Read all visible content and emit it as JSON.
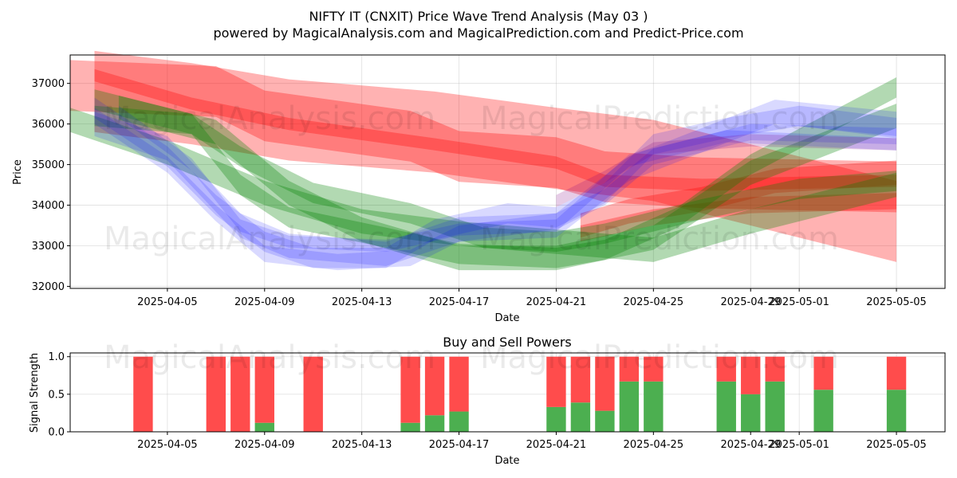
{
  "title": "NIFTY IT (CNXIT) Price Wave Trend Analysis (May 03 )",
  "subtitle": "powered by MagicalAnalysis.com and MagicalPrediction.com and Predict-Price.com",
  "watermarks": [
    "MagicalAnalysis.com",
    "MagicalPrediction.com"
  ],
  "colors": {
    "red": "#ff0000",
    "green": "#008000",
    "blue": "#0000ff",
    "bar_buy": "#4caf50",
    "bar_sell": "#ff4c4c"
  },
  "chart_data": [
    {
      "type": "area",
      "title": "",
      "xlabel": "Date",
      "ylabel": "Price",
      "ylim": [
        31950,
        37700
      ],
      "xlim": [
        "2025-04-01",
        "2025-05-07"
      ],
      "x_ticks": [
        "2025-04-05",
        "2025-04-09",
        "2025-04-13",
        "2025-04-17",
        "2025-04-21",
        "2025-04-25",
        "2025-04-29",
        "2025-05-01",
        "2025-05-05"
      ],
      "y_ticks": [
        32000,
        33000,
        34000,
        35000,
        36000,
        37000
      ],
      "grid": true,
      "series": [
        {
          "color": "red",
          "alpha": 0.3,
          "x": [
            "2025-04-01",
            "2025-04-07",
            "2025-04-09",
            "2025-04-15",
            "2025-04-17",
            "2025-04-21",
            "2025-04-23",
            "2025-04-27",
            "2025-05-05"
          ],
          "y": [
            36950,
            36800,
            36200,
            35700,
            35200,
            35050,
            34700,
            34550,
            34450
          ],
          "width": 1250
        },
        {
          "color": "red",
          "alpha": 0.3,
          "x": [
            "2025-04-02",
            "2025-04-06",
            "2025-04-10",
            "2025-04-16",
            "2025-04-21",
            "2025-04-25",
            "2025-04-29",
            "2025-05-05"
          ],
          "y": [
            36800,
            36500,
            36100,
            35800,
            35400,
            35100,
            34500,
            33600
          ],
          "width": 2000
        },
        {
          "color": "red",
          "alpha": 0.3,
          "x": [
            "2025-04-02",
            "2025-04-06",
            "2025-04-10",
            "2025-04-16",
            "2025-04-21",
            "2025-04-23",
            "2025-04-27",
            "2025-05-05"
          ],
          "y": [
            37200,
            36500,
            36000,
            35500,
            35050,
            34600,
            34500,
            34600
          ],
          "width": 300
        },
        {
          "color": "red",
          "alpha": 0.3,
          "x": [
            "2025-04-22",
            "2025-04-24",
            "2025-04-27",
            "2025-04-30",
            "2025-05-05"
          ],
          "y": [
            33500,
            33850,
            34150,
            34600,
            34800
          ],
          "width": 600
        },
        {
          "color": "red",
          "alpha": 0.3,
          "x": [
            "2025-04-22",
            "2025-04-25",
            "2025-04-29",
            "2025-05-05"
          ],
          "y": [
            33300,
            33700,
            34000,
            34100
          ],
          "width": 400
        },
        {
          "color": "green",
          "alpha": 0.3,
          "x": [
            "2025-04-01",
            "2025-04-05",
            "2025-04-09",
            "2025-04-13",
            "2025-04-17",
            "2025-04-21",
            "2025-04-25",
            "2025-04-29",
            "2025-05-05"
          ],
          "y": [
            36100,
            35300,
            34300,
            33600,
            33300,
            33100,
            32900,
            33600,
            34500
          ],
          "width": 600
        },
        {
          "color": "green",
          "alpha": 0.3,
          "x": [
            "2025-04-02",
            "2025-04-06",
            "2025-04-08",
            "2025-04-11",
            "2025-04-15",
            "2025-04-18",
            "2025-04-21",
            "2025-04-23",
            "2025-04-27",
            "2025-05-01",
            "2025-05-05"
          ],
          "y": [
            36600,
            36000,
            35200,
            34300,
            33800,
            33200,
            33100,
            33300,
            33900,
            34400,
            34600
          ],
          "width": 500
        },
        {
          "color": "green",
          "alpha": 0.3,
          "x": [
            "2025-04-02",
            "2025-04-06",
            "2025-04-08",
            "2025-04-10",
            "2025-04-14",
            "2025-04-17",
            "2025-04-21",
            "2025-04-23",
            "2025-04-26",
            "2025-04-29",
            "2025-05-05"
          ],
          "y": [
            36200,
            36000,
            34500,
            33700,
            33200,
            32800,
            32700,
            32900,
            33700,
            35000,
            36900
          ],
          "width": 500
        },
        {
          "color": "green",
          "alpha": 0.3,
          "x": [
            "2025-04-03",
            "2025-04-07",
            "2025-04-10",
            "2025-04-13",
            "2025-04-17",
            "2025-04-21",
            "2025-04-25",
            "2025-04-29",
            "2025-05-05"
          ],
          "y": [
            36400,
            35800,
            34300,
            33400,
            32700,
            32700,
            33200,
            34800,
            36200
          ],
          "width": 600
        },
        {
          "color": "blue",
          "alpha": 0.15,
          "x": [
            "2025-04-02",
            "2025-04-05",
            "2025-04-07",
            "2025-04-09",
            "2025-04-11",
            "2025-04-14",
            "2025-04-16",
            "2025-04-19",
            "2025-04-21",
            "2025-04-23",
            "2025-04-25",
            "2025-04-28",
            "2025-05-01",
            "2025-05-05"
          ],
          "y": [
            36400,
            35200,
            34000,
            33100,
            32700,
            32700,
            33400,
            33800,
            33700,
            34300,
            35500,
            35900,
            36200,
            35900
          ],
          "width": 500
        },
        {
          "color": "blue",
          "alpha": 0.15,
          "x": [
            "2025-04-02",
            "2025-04-05",
            "2025-04-07",
            "2025-04-09",
            "2025-04-12",
            "2025-04-15",
            "2025-04-17",
            "2025-04-21",
            "2025-04-23",
            "2025-04-25",
            "2025-04-29",
            "2025-05-05"
          ],
          "y": [
            36200,
            35000,
            33800,
            32800,
            32600,
            32700,
            33300,
            33600,
            34200,
            35200,
            35800,
            35700
          ],
          "width": 400
        },
        {
          "color": "blue",
          "alpha": 0.15,
          "x": [
            "2025-04-02",
            "2025-04-05",
            "2025-04-08",
            "2025-04-10",
            "2025-04-14",
            "2025-04-17",
            "2025-04-21",
            "2025-04-24",
            "2025-04-27",
            "2025-04-30",
            "2025-05-05"
          ],
          "y": [
            36000,
            35400,
            33500,
            33000,
            32800,
            33400,
            33500,
            34900,
            35600,
            36300,
            36000
          ],
          "width": 600
        },
        {
          "color": "blue",
          "alpha": 0.15,
          "x": [
            "2025-04-03",
            "2025-04-06",
            "2025-04-08",
            "2025-04-10",
            "2025-04-14",
            "2025-04-17",
            "2025-04-21",
            "2025-04-24",
            "2025-04-28",
            "2025-05-05"
          ],
          "y": [
            36300,
            35000,
            33500,
            33100,
            33000,
            33400,
            33500,
            35100,
            35700,
            35500
          ],
          "width": 300
        },
        {
          "color": "purple",
          "alpha": 0.2,
          "x": [
            "2025-04-21",
            "2025-04-23",
            "2025-04-25",
            "2025-04-29",
            "2025-05-05"
          ],
          "y": [
            34100,
            34700,
            35400,
            35600,
            35500
          ],
          "width": 300
        }
      ]
    },
    {
      "type": "bar",
      "title": "Buy and Sell Powers",
      "xlabel": "Date",
      "ylabel": "Signal Strength",
      "ylim": [
        0,
        1.05
      ],
      "y_ticks": [
        0.0,
        0.5,
        1.0
      ],
      "x_ticks": [
        "2025-04-05",
        "2025-04-09",
        "2025-04-13",
        "2025-04-17",
        "2025-04-21",
        "2025-04-25",
        "2025-04-29",
        "2025-05-01",
        "2025-05-05"
      ],
      "dates": [
        "2025-04-04",
        "2025-04-07",
        "2025-04-08",
        "2025-04-09",
        "2025-04-11",
        "2025-04-15",
        "2025-04-16",
        "2025-04-17",
        "2025-04-21",
        "2025-04-22",
        "2025-04-23",
        "2025-04-24",
        "2025-04-25",
        "2025-04-28",
        "2025-04-29",
        "2025-04-30",
        "2025-05-02",
        "2025-05-05"
      ],
      "series": [
        {
          "name": "Buy",
          "values": [
            0,
            0,
            0,
            0.12,
            0,
            0.12,
            0.22,
            0.27,
            0.33,
            0.39,
            0.28,
            0.67,
            0.67,
            0.67,
            0.5,
            0.67,
            0.56,
            0.56
          ]
        },
        {
          "name": "Sell",
          "values": [
            1,
            1,
            1,
            0.88,
            1,
            0.88,
            0.78,
            0.73,
            0.67,
            0.61,
            0.72,
            0.33,
            0.33,
            0.33,
            0.5,
            0.33,
            0.44,
            0.44
          ]
        }
      ]
    }
  ]
}
